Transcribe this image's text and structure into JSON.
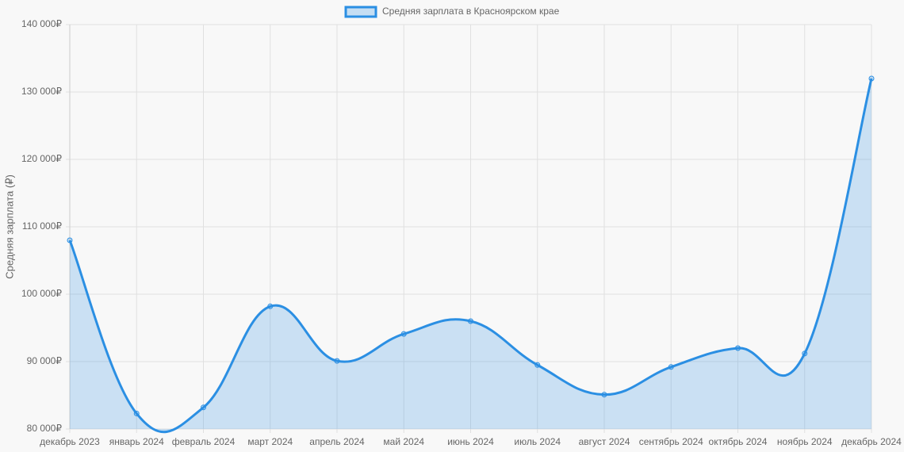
{
  "chart_data": {
    "type": "line",
    "categories": [
      "декабрь 2023",
      "январь 2024",
      "февраль 2024",
      "март 2024",
      "апрель 2024",
      "май 2024",
      "июнь 2024",
      "июль 2024",
      "август 2024",
      "сентябрь 2024",
      "октябрь 2024",
      "ноябрь 2024",
      "декабрь 2024"
    ],
    "series": [
      {
        "name": "Средняя зарплата в Красноярском крае",
        "color": "#2b8fe3",
        "values": [
          108000,
          82300,
          83200,
          98200,
          90100,
          94100,
          96000,
          89500,
          85100,
          89200,
          92000,
          91200,
          132000
        ]
      }
    ],
    "y_label": "Средняя зарплата (₽)",
    "ylim": [
      80000,
      140000
    ],
    "yticks": [
      {
        "value": 80000,
        "label": "80 000₽"
      },
      {
        "value": 90000,
        "label": "90 000₽"
      },
      {
        "value": 100000,
        "label": "100 000₽"
      },
      {
        "value": 110000,
        "label": "110 000₽"
      },
      {
        "value": 120000,
        "label": "120 000₽"
      },
      {
        "value": 130000,
        "label": "130 000₽"
      },
      {
        "value": 140000,
        "label": "140 000₽"
      }
    ],
    "grid": true,
    "fill": true,
    "legend": "top"
  }
}
